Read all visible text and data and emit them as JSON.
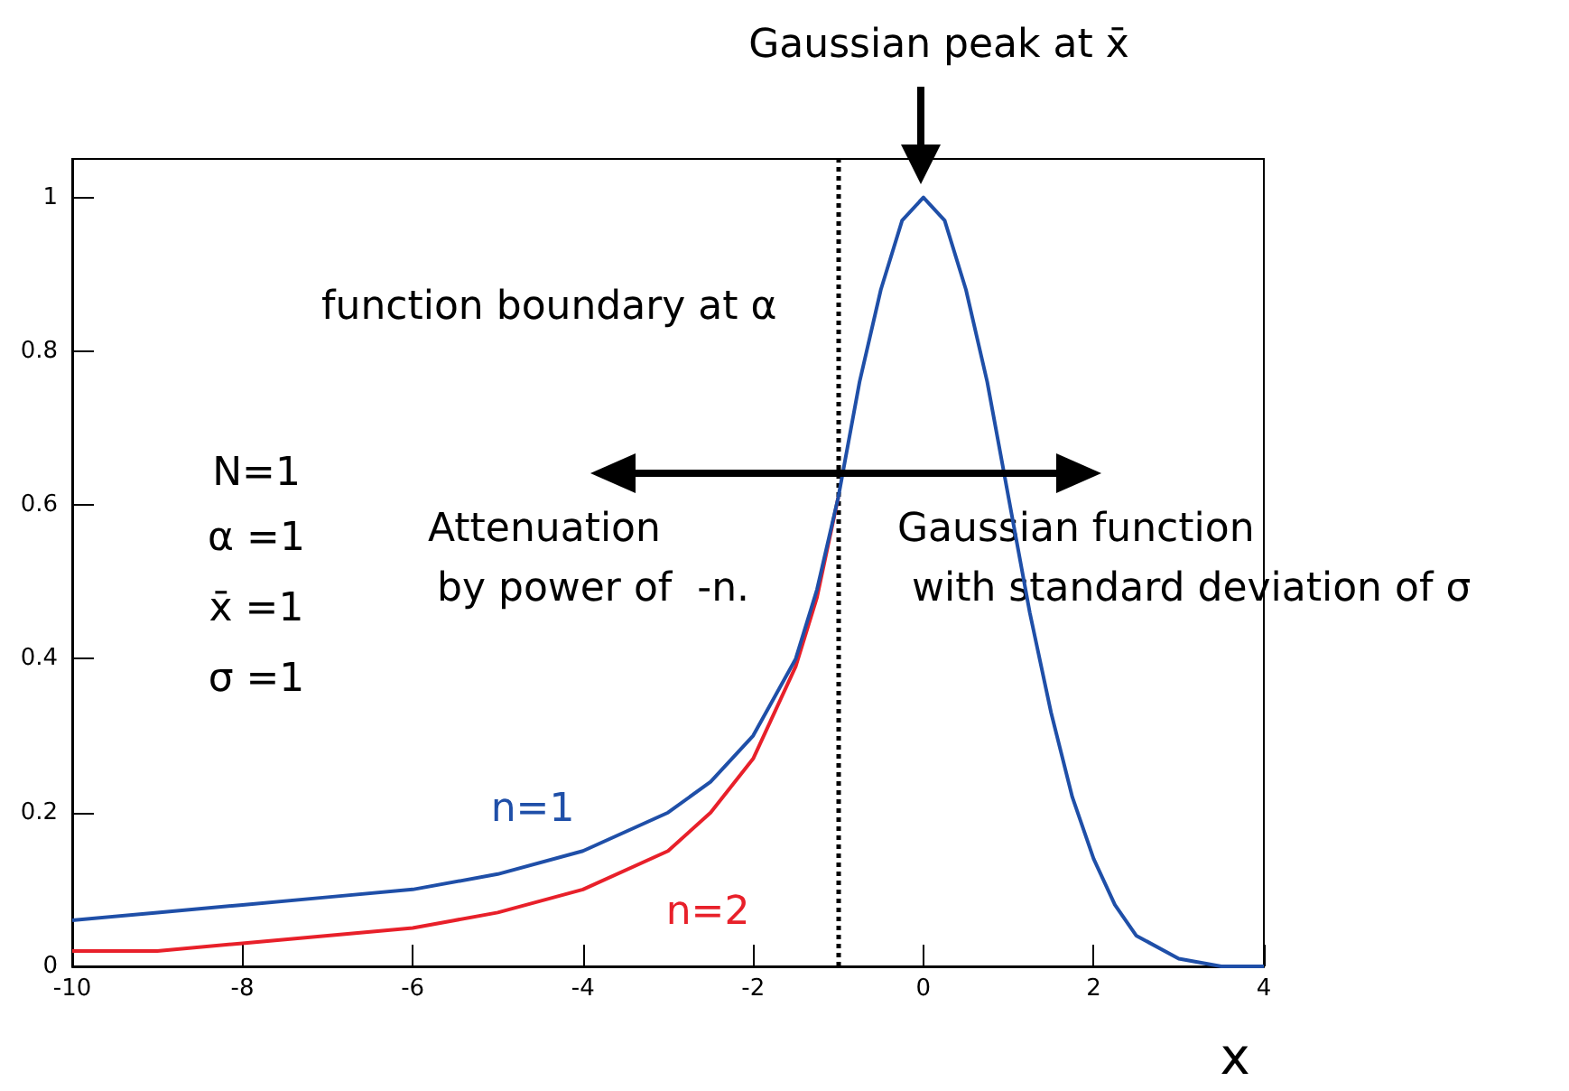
{
  "chart_data": {
    "type": "line",
    "xlabel": "x",
    "xlim": [
      -10,
      4
    ],
    "ylim": [
      0,
      1.05
    ],
    "xticks": [
      -10,
      -8,
      -6,
      -4,
      -2,
      0,
      2,
      4
    ],
    "yticks": [
      0,
      0.2,
      0.4,
      0.6,
      0.8,
      1
    ],
    "grid": false,
    "legend": false,
    "marker": "none",
    "line_style": "solid",
    "series": [
      {
        "name": "n=1",
        "color": "#1f4fa8",
        "x": [
          -10,
          -9,
          -8,
          -7,
          -6,
          -5,
          -4,
          -3,
          -2.5,
          -2,
          -1.5,
          -1.25,
          -1,
          -0.75,
          -0.5,
          -0.25,
          0,
          0.25,
          0.5,
          0.75,
          1,
          1.25,
          1.5,
          1.75,
          2,
          2.25,
          2.5,
          3,
          3.5,
          4
        ],
        "values": [
          0.06,
          0.07,
          0.08,
          0.09,
          0.1,
          0.12,
          0.15,
          0.2,
          0.24,
          0.3,
          0.4,
          0.49,
          0.61,
          0.76,
          0.88,
          0.97,
          1,
          0.97,
          0.88,
          0.76,
          0.61,
          0.46,
          0.33,
          0.22,
          0.14,
          0.08,
          0.04,
          0.01,
          0,
          0
        ]
      },
      {
        "name": "n=2",
        "color": "#e8202a",
        "x": [
          -10,
          -9,
          -8,
          -7,
          -6,
          -5,
          -4,
          -3,
          -2.5,
          -2,
          -1.5,
          -1.25,
          -1
        ],
        "values": [
          0.02,
          0.02,
          0.03,
          0.04,
          0.05,
          0.07,
          0.1,
          0.15,
          0.2,
          0.27,
          0.39,
          0.48,
          0.61
        ]
      }
    ],
    "ref_lines": [
      {
        "axis": "x",
        "value": -1,
        "color": "#000000",
        "line_style": "dotted"
      }
    ],
    "annotations": [
      "Gaussian peak at x̄",
      "function boundary at α",
      "Attenuation",
      "by power of  -n.",
      "Gaussian function",
      "with standard deviation of σ",
      "N=1",
      "α =1",
      "x̄ =1",
      "σ =1"
    ]
  }
}
